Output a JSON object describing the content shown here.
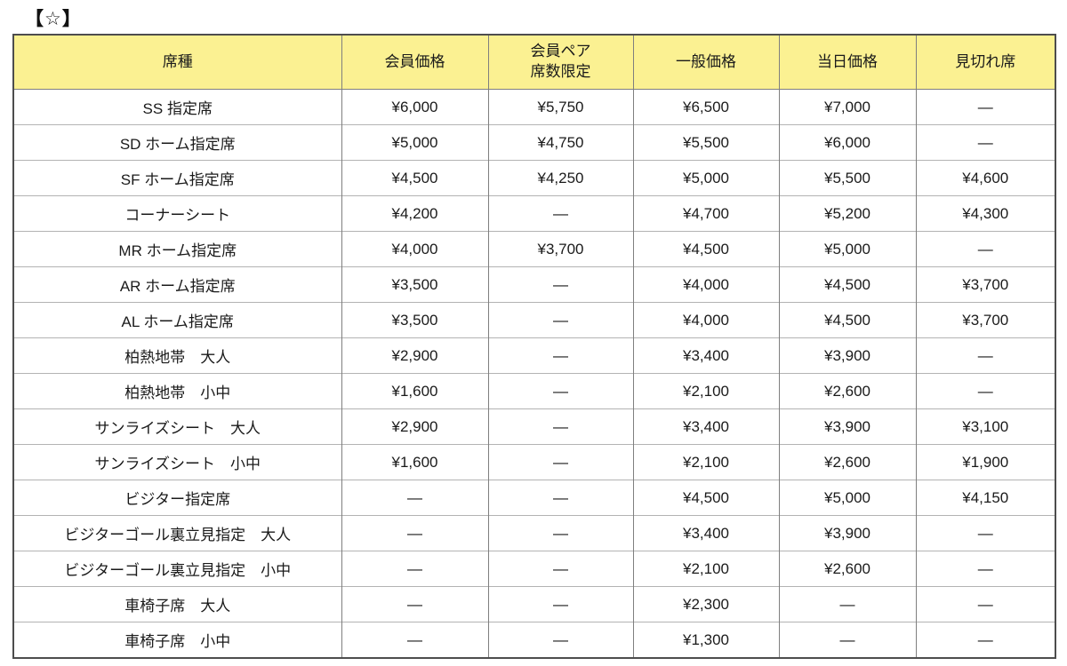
{
  "page": {
    "title": "【☆】"
  },
  "table": {
    "header_bg": "#fbf192",
    "outer_border_color": "#4d4d4d",
    "column_border_color": "#7f7f7f",
    "row_border_color": "#b3b3b3",
    "columns": [
      "席種",
      "会員価格",
      "会員ペア\n席数限定",
      "一般価格",
      "当日価格",
      "見切れ席"
    ],
    "rows": [
      [
        "SS 指定席",
        "¥6,000",
        "¥5,750",
        "¥6,500",
        "¥7,000",
        "―"
      ],
      [
        "SD ホーム指定席",
        "¥5,000",
        "¥4,750",
        "¥5,500",
        "¥6,000",
        "―"
      ],
      [
        "SF ホーム指定席",
        "¥4,500",
        "¥4,250",
        "¥5,000",
        "¥5,500",
        "¥4,600"
      ],
      [
        "コーナーシート",
        "¥4,200",
        "―",
        "¥4,700",
        "¥5,200",
        "¥4,300"
      ],
      [
        "MR ホーム指定席",
        "¥4,000",
        "¥3,700",
        "¥4,500",
        "¥5,000",
        "―"
      ],
      [
        "AR ホーム指定席",
        "¥3,500",
        "―",
        "¥4,000",
        "¥4,500",
        "¥3,700"
      ],
      [
        "AL ホーム指定席",
        "¥3,500",
        "―",
        "¥4,000",
        "¥4,500",
        "¥3,700"
      ],
      [
        "柏熱地帯　大人",
        "¥2,900",
        "―",
        "¥3,400",
        "¥3,900",
        "―"
      ],
      [
        "柏熱地帯　小中",
        "¥1,600",
        "―",
        "¥2,100",
        "¥2,600",
        "―"
      ],
      [
        "サンライズシート　大人",
        "¥2,900",
        "―",
        "¥3,400",
        "¥3,900",
        "¥3,100"
      ],
      [
        "サンライズシート　小中",
        "¥1,600",
        "―",
        "¥2,100",
        "¥2,600",
        "¥1,900"
      ],
      [
        "ビジター指定席",
        "―",
        "―",
        "¥4,500",
        "¥5,000",
        "¥4,150"
      ],
      [
        "ビジターゴール裏立見指定　大人",
        "―",
        "―",
        "¥3,400",
        "¥3,900",
        "―"
      ],
      [
        "ビジターゴール裏立見指定　小中",
        "―",
        "―",
        "¥2,100",
        "¥2,600",
        "―"
      ],
      [
        "車椅子席　大人",
        "―",
        "―",
        "¥2,300",
        "―",
        "―"
      ],
      [
        "車椅子席　小中",
        "―",
        "―",
        "¥1,300",
        "―",
        "―"
      ]
    ]
  }
}
